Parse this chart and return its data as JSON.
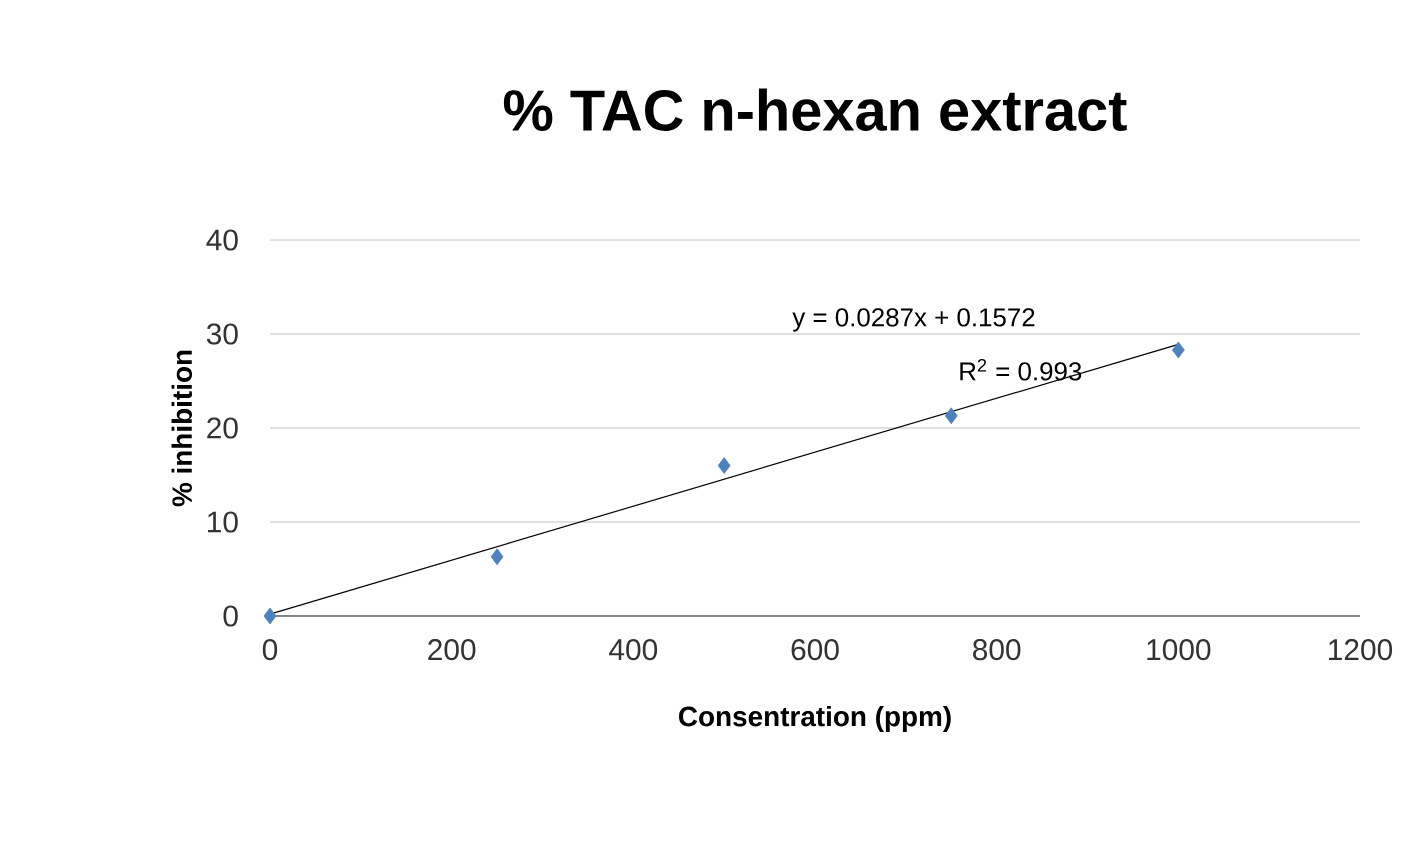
{
  "chart_data": {
    "type": "scatter",
    "title": "% TAC n-hexan extract",
    "xlabel": "Consentration (ppm)",
    "ylabel": "% inhibition",
    "xlim": [
      0,
      1200
    ],
    "xticks": [
      0,
      200,
      400,
      600,
      800,
      1000,
      1200
    ],
    "ylim": [
      0,
      40
    ],
    "yticks": [
      0,
      10,
      20,
      30,
      40
    ],
    "grid": "y",
    "series": [
      {
        "color": "#4f81bd",
        "marker": "diamond",
        "x": [
          0,
          250,
          500,
          750,
          1000
        ],
        "values": [
          0,
          6.3,
          16,
          21.3,
          28.3
        ]
      },
      {
        "type": "line",
        "color": "#000000",
        "marker": "none",
        "line_style": "solid",
        "x": [
          0,
          1000
        ],
        "values": [
          0.2,
          28.9
        ]
      }
    ],
    "annotations": [
      "y = 0.0287x + 0.1572",
      "R$^{2}$ = 0.993"
    ]
  }
}
